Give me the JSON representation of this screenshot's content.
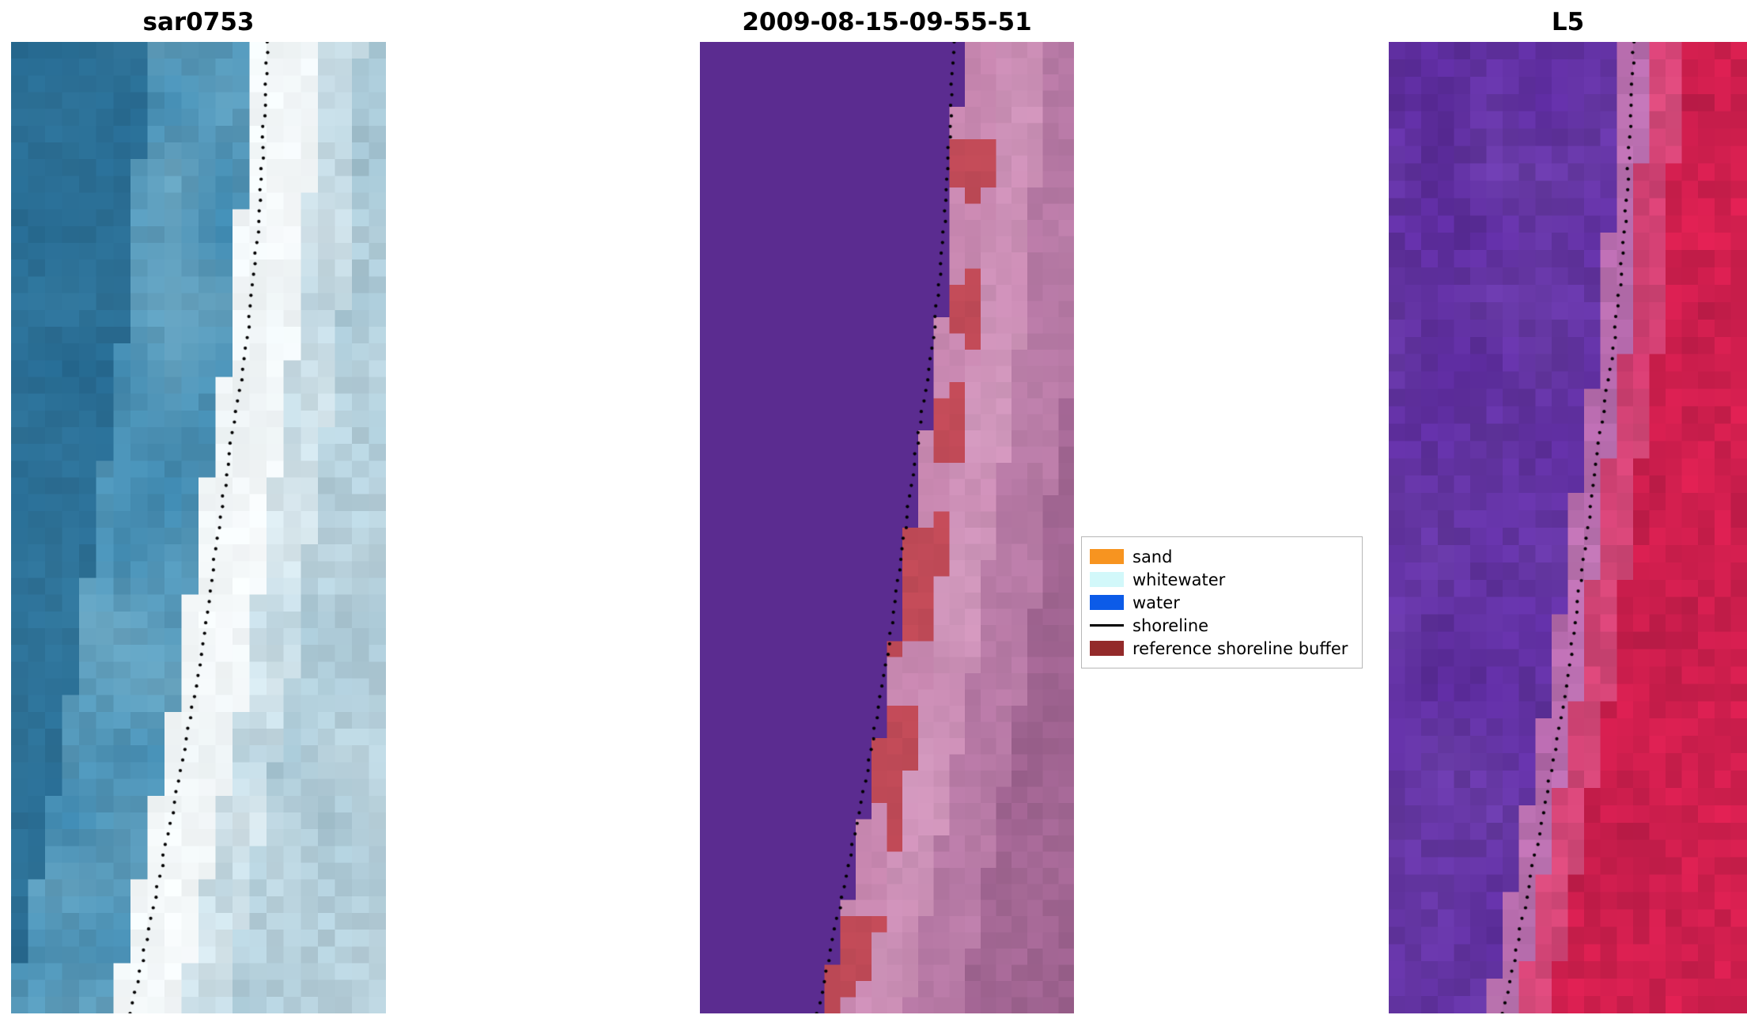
{
  "figure": {
    "background": "#ffffff",
    "panels": [
      {
        "id": "sar0753",
        "title": "sar0753",
        "description": "SAR satellite image of coastline: teal water on left, bright white sand band, pale blue-grey land on right",
        "seed": 7,
        "grid": {
          "cols": 22,
          "rows": 58
        },
        "boundary_shift": 0,
        "dot_offset": 0,
        "zones": [
          {
            "max_d": -0.33,
            "color": "#25688f",
            "low": "#3e84a8",
            "low_amt": 0.5,
            "jitter": 0.05
          },
          {
            "max_d": -0.05,
            "color": "#3a85ad",
            "low": "#93c2d3",
            "low_amt": 0.55,
            "jitter": 0.06
          },
          {
            "max_d": 0.13,
            "color": "#eef4f6",
            "low": "#ffffff",
            "low_amt": 0.5,
            "jitter": 0.03
          },
          {
            "max_d": 0.25,
            "color": "#bad3de",
            "low": "#f3f9fb",
            "low_amt": 0.6,
            "jitter": 0.05
          },
          {
            "max_d": 9,
            "color": "#9cbecd",
            "low": "#ddecf2",
            "low_amt": 0.55,
            "jitter": 0.06
          }
        ]
      },
      {
        "id": "classification",
        "title": "2009-08-15-09-55-51",
        "description": "Classified image: water class shown solid purple, reference shoreline buffer in brick red along boundary, land in pink/mauve",
        "seed": 13,
        "grid": {
          "cols": 24,
          "rows": 60
        },
        "boundary_shift": 0.01,
        "dot_offset": -0.006,
        "zones": [
          {
            "max_d": 0.0,
            "color": "#5b2c90",
            "low": "#5b2c90",
            "low_amt": 0,
            "jitter": 0
          },
          {
            "max_d": 0.1,
            "color": "#c685ae",
            "low": "#d79ec2",
            "low_amt": 0.4,
            "jitter": 0.03,
            "alt": "#c04a57",
            "alt_prob": 0.42
          },
          {
            "max_d": 0.22,
            "color": "#c88ab2",
            "low": "#dba8c8",
            "low_amt": 0.5,
            "jitter": 0.04
          },
          {
            "max_d": 0.36,
            "color": "#b174a0",
            "low": "#ca8db6",
            "low_amt": 0.5,
            "jitter": 0.04
          },
          {
            "max_d": 9,
            "color": "#9a5f8c",
            "low": "#b577a3",
            "low_amt": 0.5,
            "jitter": 0.05
          }
        ]
      },
      {
        "id": "L5",
        "title": "L5",
        "description": "Landsat 5 false-colour image: water purple on left, land crimson red on right, pink transition at shoreline",
        "seed": 29,
        "grid": {
          "cols": 22,
          "rows": 56
        },
        "boundary_shift": 0.005,
        "dot_offset": 0,
        "zones": [
          {
            "max_d": -0.05,
            "color": "#5b2a9c",
            "low": "#7e54b8",
            "low_amt": 0.45,
            "jitter": 0.09
          },
          {
            "max_d": 0.03,
            "color": "#b064a8",
            "low": "#d28cc2",
            "low_amt": 0.5,
            "jitter": 0.07
          },
          {
            "max_d": 0.12,
            "color": "#cf3a6e",
            "low": "#e06a92",
            "low_amt": 0.4,
            "jitter": 0.07
          },
          {
            "max_d": 9,
            "color": "#d92050",
            "low": "#a81743",
            "low_amt": 0.45,
            "jitter": 0.08
          }
        ]
      }
    ],
    "shoreline_dots": {
      "count": 92,
      "color": "#000000",
      "radius": 2.1,
      "x_jitter": 0.006
    },
    "legend": {
      "items": [
        {
          "label": "sand",
          "color": "#f79420",
          "type": "patch"
        },
        {
          "label": "whitewater",
          "color": "#d2f8fa",
          "type": "patch"
        },
        {
          "label": "water",
          "color": "#0c5be8",
          "type": "patch"
        },
        {
          "label": "shoreline",
          "color": "#000000",
          "type": "line"
        },
        {
          "label": "reference shoreline buffer",
          "color": "#932a2a",
          "type": "patch"
        }
      ]
    }
  },
  "chart_data": {
    "type": "heatmap",
    "title": "",
    "subtitle": "Three-panel coastal shoreline detection figure (satellite image, classified image, Landsat composite) with mapped shoreline overlaid as dotted black line",
    "panel_titles": [
      "sar0753",
      "2009-08-15-09-55-51",
      "L5"
    ],
    "legend_entries": [
      "sand",
      "whitewater",
      "water",
      "shoreline",
      "reference shoreline buffer"
    ],
    "legend_position": "center-right between panel 2 and panel 3",
    "axes_visible": false,
    "grid": false,
    "shoreline_path_fraction": [
      [
        0.0,
        0.685
      ],
      [
        0.08,
        0.675
      ],
      [
        0.16,
        0.665
      ],
      [
        0.24,
        0.648
      ],
      [
        0.32,
        0.625
      ],
      [
        0.4,
        0.592
      ],
      [
        0.48,
        0.562
      ],
      [
        0.56,
        0.533
      ],
      [
        0.64,
        0.505
      ],
      [
        0.72,
        0.468
      ],
      [
        0.8,
        0.428
      ],
      [
        0.88,
        0.385
      ],
      [
        0.95,
        0.348
      ],
      [
        1.0,
        0.318
      ]
    ]
  }
}
